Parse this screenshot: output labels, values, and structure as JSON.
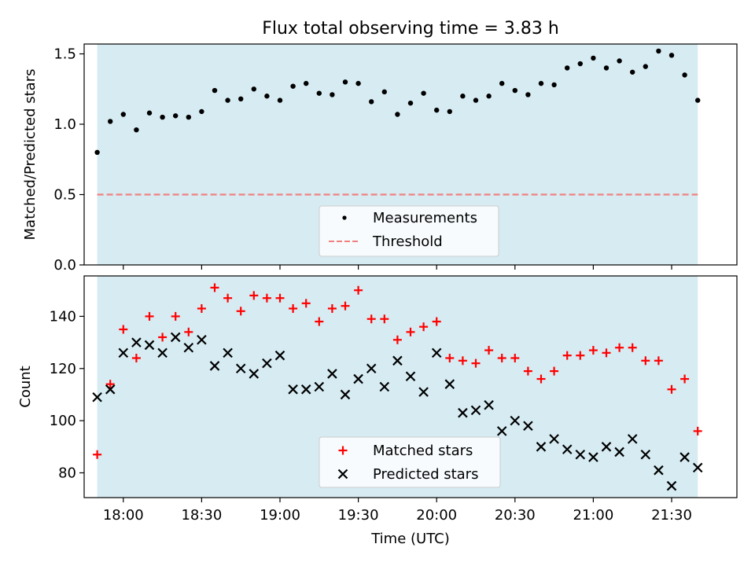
{
  "chart_data": [
    {
      "type": "scatter",
      "title": "Flux total observing time = 3.83 h",
      "ylabel": "Matched/Predicted stars",
      "ylim": [
        0,
        1.57
      ],
      "yticks": [
        0.0,
        0.5,
        1.0,
        1.5
      ],
      "ytick_labels": [
        "0.0",
        "0.5",
        "1.0",
        "1.5"
      ],
      "shaded_band_color": "#add8e6",
      "legend": {
        "placement": "bottom-center",
        "entries": [
          "Measurements",
          "Threshold"
        ]
      },
      "threshold": {
        "name": "Threshold",
        "value": 0.5,
        "color": "#f08080"
      },
      "series": [
        {
          "name": "Measurements",
          "marker": "dot",
          "color": "#000000",
          "y": [
            0.8,
            1.02,
            1.07,
            0.96,
            1.08,
            1.05,
            1.06,
            1.05,
            1.09,
            1.24,
            1.17,
            1.18,
            1.25,
            1.2,
            1.17,
            1.27,
            1.29,
            1.22,
            1.21,
            1.3,
            1.29,
            1.16,
            1.23,
            1.07,
            1.15,
            1.22,
            1.1,
            1.09,
            1.2,
            1.17,
            1.2,
            1.29,
            1.24,
            1.21,
            1.29,
            1.28,
            1.4,
            1.43,
            1.47,
            1.4,
            1.45,
            1.37,
            1.41,
            1.52,
            1.49,
            1.35,
            1.17
          ]
        }
      ]
    },
    {
      "type": "scatter",
      "xlabel": "Time (UTC)",
      "ylabel": "Count",
      "ylim": [
        70.5,
        155.5
      ],
      "yticks": [
        80,
        100,
        120,
        140
      ],
      "ytick_labels": [
        "80",
        "100",
        "120",
        "140"
      ],
      "x_start": "17:50",
      "x_step_minutes": 5,
      "xlim": [
        "17:45",
        "21:55"
      ],
      "xticks": [
        "18:00",
        "18:30",
        "19:00",
        "19:30",
        "20:00",
        "20:30",
        "21:00",
        "21:30"
      ],
      "shaded_band": [
        "17:50",
        "21:40"
      ],
      "legend": {
        "placement": "bottom-center",
        "entries": [
          "Matched stars",
          "Predicted stars"
        ]
      },
      "series": [
        {
          "name": "Matched stars",
          "marker": "plus",
          "color": "#ff0000",
          "y": [
            87,
            114,
            135,
            124,
            140,
            132,
            140,
            134,
            143,
            151,
            147,
            142,
            148,
            147,
            147,
            143,
            145,
            138,
            143,
            144,
            150,
            139,
            139,
            131,
            134,
            136,
            138,
            124,
            123,
            122,
            127,
            124,
            124,
            119,
            116,
            119,
            125,
            125,
            127,
            126,
            128,
            128,
            123,
            123,
            112,
            116,
            96
          ]
        },
        {
          "name": "Predicted stars",
          "marker": "x",
          "color": "#000000",
          "y": [
            109,
            112,
            126,
            130,
            129,
            126,
            132,
            128,
            131,
            121,
            126,
            120,
            118,
            122,
            125,
            112,
            112,
            113,
            118,
            110,
            116,
            120,
            113,
            123,
            117,
            111,
            126,
            114,
            103,
            104,
            106,
            96,
            100,
            98,
            90,
            93,
            89,
            87,
            86,
            90,
            88,
            93,
            87,
            81,
            75,
            86,
            82
          ]
        }
      ]
    }
  ]
}
